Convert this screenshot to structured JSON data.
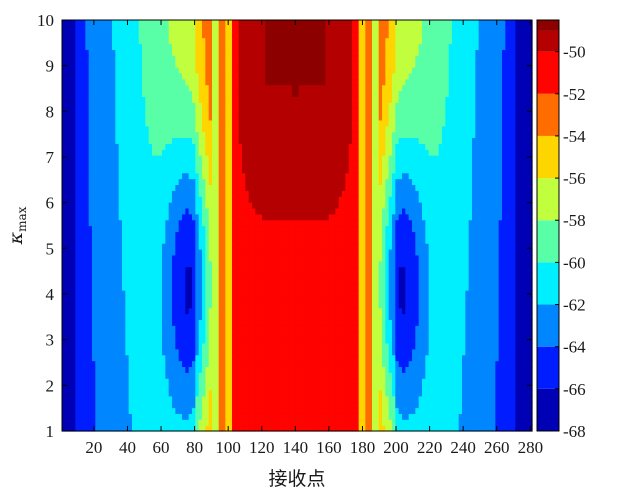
{
  "chart_data": {
    "type": "heatmap",
    "subtype": "filled-contour",
    "title": "",
    "xlabel": "接收点",
    "ylabel_symbol": "κ",
    "ylabel_subscript": "max",
    "xlim": [
      1,
      281
    ],
    "ylim": [
      1,
      10
    ],
    "x_ticks": [
      20,
      40,
      60,
      80,
      100,
      120,
      140,
      160,
      180,
      200,
      220,
      240,
      260,
      280
    ],
    "y_ticks": [
      1,
      2,
      3,
      4,
      5,
      6,
      7,
      8,
      9,
      10
    ],
    "colorbar": {
      "range": [
        -68,
        -48.5
      ],
      "ticks": [
        -50,
        -52,
        -54,
        -56,
        -58,
        -60,
        -62,
        -64,
        -66,
        -68
      ],
      "colormap": "jet"
    },
    "contour_levels": [
      -66,
      -64,
      -62,
      -60,
      -58,
      -56,
      -54,
      -52,
      -50,
      -49
    ],
    "grid": false,
    "field_model": {
      "center_x": 140,
      "tail_max": -66,
      "tail_slope": 0.095,
      "tail_curve": 0.35,
      "central_core": -50.5,
      "central_slope": 0.12,
      "central_y_peak": 0.9,
      "blob_centers_x": [
        78,
        202
      ],
      "blob_center_y": 4.3,
      "blob_depth": -8.5,
      "stripes": [
        {
          "x": 92,
          "value": -57
        },
        {
          "x": 96,
          "value": -54
        },
        {
          "x": 100,
          "value": -56
        },
        {
          "x": 104,
          "value": -52
        },
        {
          "x": 176,
          "value": -52
        },
        {
          "x": 180,
          "value": -56
        },
        {
          "x": 184,
          "value": -54
        },
        {
          "x": 188,
          "value": -57
        }
      ]
    }
  }
}
